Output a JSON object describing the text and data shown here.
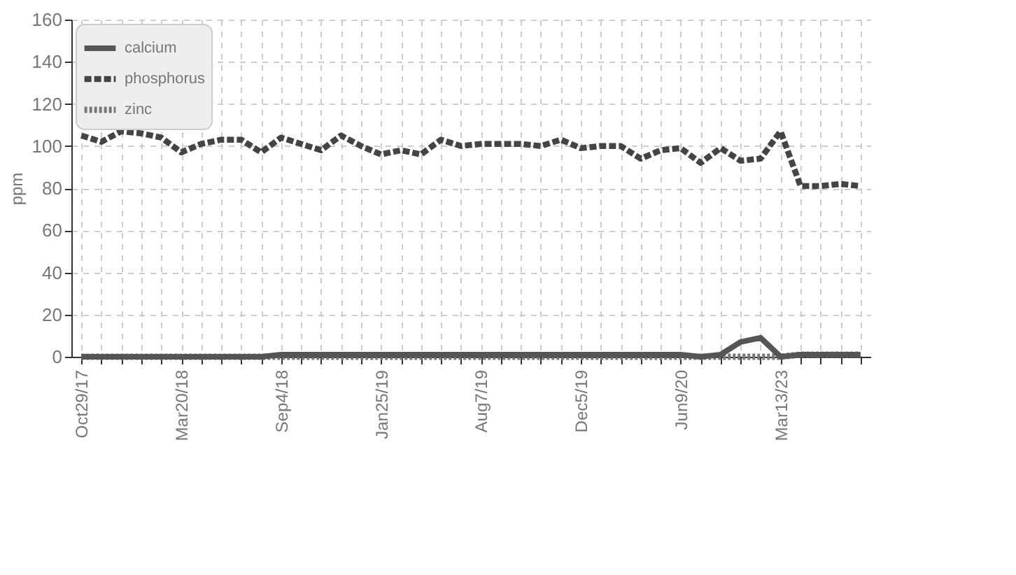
{
  "chart_data": {
    "type": "line",
    "ylabel": "ppm",
    "categories": [
      "Oct29/17",
      null,
      null,
      null,
      null,
      "Mar20/18",
      null,
      null,
      null,
      null,
      "Sep4/18",
      null,
      null,
      null,
      null,
      "Jan25/19",
      null,
      null,
      null,
      null,
      "Aug7/19",
      null,
      null,
      null,
      null,
      "Dec5/19",
      null,
      null,
      null,
      null,
      "Jun9/20",
      null,
      null,
      null,
      null,
      "Mar13/23",
      null,
      null,
      null,
      null
    ],
    "series": [
      {
        "name": "calcium",
        "color": "#555555",
        "line_style": "solid",
        "values": [
          0,
          0,
          0,
          0,
          0,
          0,
          0,
          0,
          0,
          0,
          1,
          1,
          1,
          1,
          1,
          1,
          1,
          1,
          1,
          1,
          1,
          1,
          1,
          1,
          1,
          1,
          1,
          1,
          1,
          1,
          1,
          0,
          1,
          7,
          9,
          0,
          1,
          1,
          1,
          1
        ]
      },
      {
        "name": "phosphorus",
        "color": "#444444",
        "line_style": "dashed",
        "values": [
          105,
          102,
          107,
          106,
          104,
          97,
          101,
          103,
          103,
          97,
          104,
          101,
          98,
          105,
          100,
          96,
          98,
          96,
          103,
          100,
          101,
          101,
          101,
          100,
          103,
          99,
          100,
          100,
          94,
          98,
          99,
          92,
          99,
          93,
          94,
          107,
          81,
          81,
          82,
          81
        ]
      },
      {
        "name": "zinc",
        "color": "#777777",
        "line_style": "dotted",
        "values": [
          0,
          0,
          0,
          0,
          0,
          0,
          0,
          0,
          0,
          0,
          0,
          0,
          0,
          0,
          0,
          0,
          0,
          0,
          0,
          0,
          0,
          0,
          0,
          0,
          0,
          0,
          0,
          0,
          0,
          0,
          0,
          0,
          0,
          0,
          0,
          0,
          1,
          1,
          1,
          1
        ]
      }
    ],
    "ylim": [
      0,
      160
    ],
    "yticks": [
      0,
      20,
      40,
      60,
      80,
      100,
      120,
      140,
      160
    ],
    "grid": true,
    "legend": "top left"
  }
}
